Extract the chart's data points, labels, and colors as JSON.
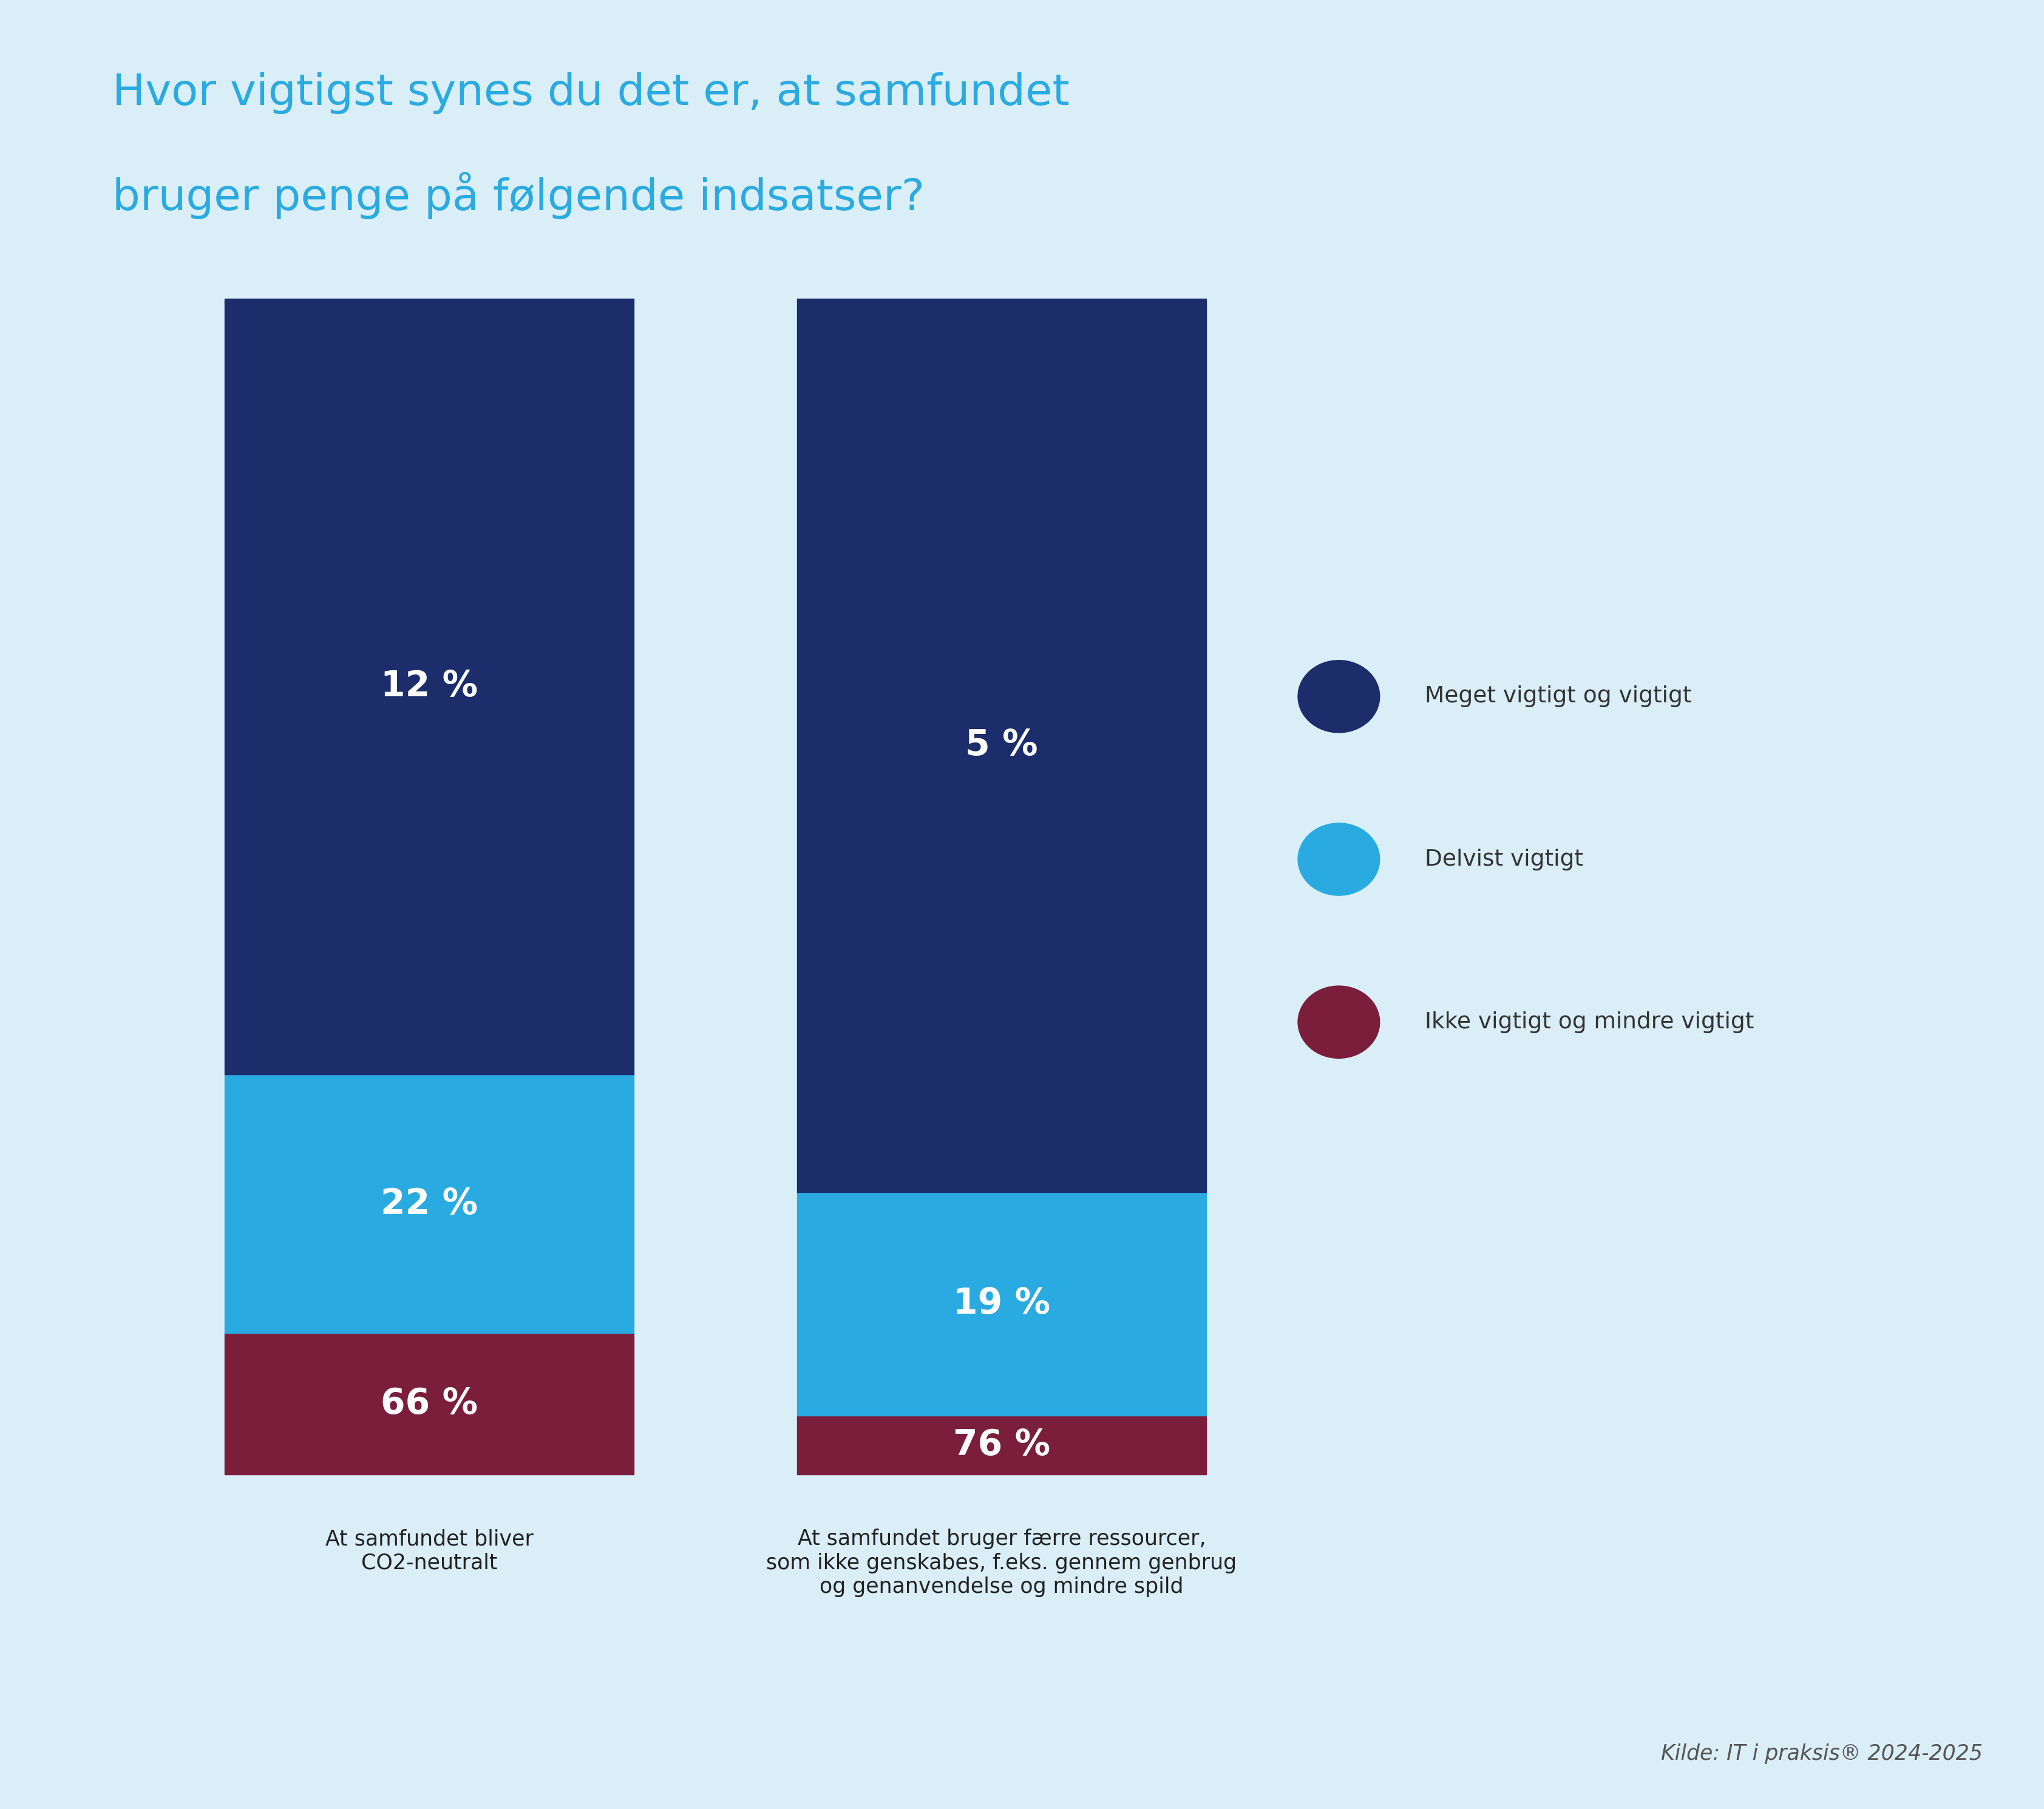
{
  "title_line1": "Hvor vigtigst synes du det er, at samfundet",
  "title_line2": "bruger penge på følgende indsatser?",
  "title_color": "#29aae1",
  "background_color": "#daeef8",
  "segments": [
    {
      "label": "Meget vigtigt og vigtigt",
      "color": "#1b2d6b",
      "values": [
        66,
        76
      ]
    },
    {
      "label": "Delvist vigtigt",
      "color": "#29aae1",
      "values": [
        22,
        19
      ]
    },
    {
      "label": "Ikke vigtigt og mindre vigtigt",
      "color": "#7a1e3c",
      "values": [
        12,
        5
      ]
    }
  ],
  "bar_labels": [
    "At samfundet bliver\nCO2-neutralt",
    "At samfundet bruger færre ressourcer,\nsom ikke genskabes, f.eks. gennem genbrug\nog genanvendelse og mindre spild"
  ],
  "value_labels": [
    [
      "66 %",
      "22 %",
      "12 %"
    ],
    [
      "76 %",
      "19 %",
      "5 %"
    ]
  ],
  "footer": "Kilde: IT i praksis® 2024-2025",
  "footer_color": "#555555",
  "legend_labels": [
    "Meget vigtigt og vigtigt",
    "Delvist vigtigt",
    "Ikke vigtigt og mindre vigtigt"
  ],
  "legend_colors": [
    "#1b2d6b",
    "#29aae1",
    "#7a1e3c"
  ],
  "title_fontsize": 52,
  "bar_label_fontsize": 25,
  "value_fontsize": 42,
  "legend_fontsize": 27,
  "footer_fontsize": 25
}
